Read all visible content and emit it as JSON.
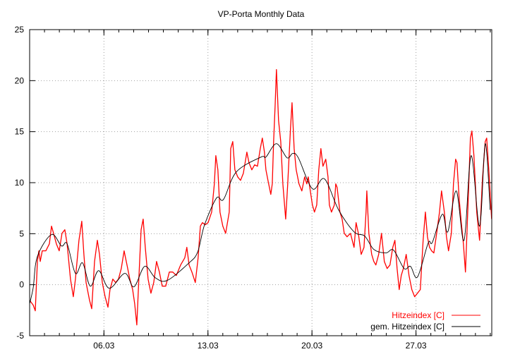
{
  "chart_data": {
    "type": "line",
    "title": "VP-Porta Monthly Data",
    "xlabel": "",
    "ylabel": "",
    "x_unit": "day of March",
    "xlim": [
      1,
      32.1
    ],
    "ylim": [
      -5,
      25
    ],
    "yticks": [
      -5,
      0,
      5,
      10,
      15,
      20,
      25
    ],
    "xticks": [
      {
        "value": 6,
        "label": "06.03"
      },
      {
        "value": 13,
        "label": "13.03"
      },
      {
        "value": 20,
        "label": "20.03"
      },
      {
        "value": 27,
        "label": "27.03"
      }
    ],
    "grid": true,
    "legend_position": "bottom-right",
    "series": [
      {
        "name": "Hitzeindex [C]",
        "color": "#ff0000",
        "x": [
          1.0,
          1.24,
          1.38,
          1.52,
          1.62,
          1.71,
          1.85,
          2.09,
          2.33,
          2.47,
          2.61,
          2.8,
          2.99,
          3.18,
          3.37,
          3.52,
          3.75,
          3.94,
          4.08,
          4.32,
          4.51,
          4.65,
          4.8,
          5.03,
          5.18,
          5.37,
          5.56,
          5.7,
          5.89,
          6.08,
          6.27,
          6.41,
          6.6,
          6.79,
          6.98,
          7.17,
          7.36,
          7.55,
          7.74,
          7.93,
          8.07,
          8.21,
          8.36,
          8.5,
          8.64,
          8.78,
          8.97,
          9.16,
          9.35,
          9.54,
          9.73,
          9.92,
          10.16,
          10.4,
          10.63,
          10.87,
          11.16,
          11.44,
          11.58,
          11.73,
          11.92,
          12.15,
          12.34,
          12.49,
          12.63,
          12.82,
          13.01,
          13.25,
          13.43,
          13.53,
          13.67,
          13.81,
          14.0,
          14.19,
          14.43,
          14.53,
          14.67,
          14.81,
          15.0,
          15.19,
          15.38,
          15.62,
          15.76,
          15.95,
          16.14,
          16.33,
          16.52,
          16.66,
          16.8,
          16.9,
          17.04,
          17.23,
          17.33,
          17.42,
          17.52,
          17.61,
          17.75,
          17.9,
          18.04,
          18.23,
          18.37,
          18.56,
          18.66,
          18.8,
          18.94,
          19.13,
          19.32,
          19.51,
          19.65,
          19.75,
          19.89,
          20.03,
          20.17,
          20.32,
          20.46,
          20.6,
          20.74,
          20.93,
          21.08,
          21.17,
          21.31,
          21.5,
          21.6,
          21.69,
          21.88,
          22.03,
          22.17,
          22.36,
          22.59,
          22.83,
          22.97,
          23.12,
          23.31,
          23.5,
          23.64,
          23.69,
          23.83,
          24.02,
          24.16,
          24.3,
          24.49,
          24.68,
          24.87,
          25.06,
          25.25,
          25.44,
          25.58,
          25.73,
          25.87,
          26.01,
          26.15,
          26.34,
          26.53,
          26.72,
          26.91,
          27.1,
          27.29,
          27.48,
          27.63,
          27.77,
          27.91,
          28.05,
          28.2,
          28.39,
          28.58,
          28.72,
          28.91,
          29.05,
          29.19,
          29.38,
          29.52,
          29.67,
          29.76,
          29.9,
          30.05,
          30.19,
          30.33,
          30.52,
          30.66,
          30.76,
          30.9,
          31.09,
          31.28,
          31.47,
          31.66,
          31.76,
          31.9,
          32.09
        ],
        "values": [
          -1.52,
          -2.0,
          -2.56,
          2.28,
          3.32,
          2.28,
          3.32,
          3.32,
          4.01,
          5.74,
          5.04,
          4.01,
          3.32,
          5.04,
          5.39,
          4.01,
          0.55,
          -1.18,
          0.55,
          4.35,
          6.22,
          2.97,
          0.21,
          -1.52,
          -2.35,
          2.28,
          4.35,
          2.97,
          0.21,
          -1.18,
          -2.21,
          -0.48,
          0.55,
          0.21,
          0.55,
          1.59,
          3.32,
          1.93,
          0.55,
          -0.48,
          -1.87,
          -3.94,
          0.9,
          5.39,
          6.43,
          3.66,
          0.55,
          -0.83,
          0.21,
          2.28,
          1.24,
          -0.14,
          -0.14,
          1.24,
          1.24,
          0.9,
          1.93,
          2.63,
          3.66,
          1.93,
          1.24,
          0.21,
          2.63,
          5.74,
          6.08,
          5.87,
          6.08,
          7.12,
          9.88,
          12.65,
          11.26,
          7.12,
          5.74,
          5.04,
          7.12,
          13.34,
          14.03,
          11.26,
          10.57,
          10.23,
          10.92,
          12.99,
          11.95,
          11.26,
          11.75,
          11.61,
          13.34,
          14.37,
          12.99,
          11.26,
          10.23,
          8.85,
          9.88,
          14.03,
          17.48,
          21.08,
          16.1,
          14.03,
          9.88,
          6.43,
          9.88,
          15.41,
          17.83,
          13.34,
          11.26,
          9.88,
          9.19,
          10.57,
          9.88,
          10.57,
          9.19,
          7.81,
          7.12,
          7.81,
          11.26,
          13.34,
          11.61,
          12.3,
          10.57,
          7.81,
          7.12,
          7.81,
          9.88,
          9.54,
          7.12,
          6.43,
          5.04,
          4.7,
          5.04,
          3.66,
          6.08,
          5.04,
          2.97,
          3.66,
          7.12,
          9.19,
          5.04,
          2.97,
          2.28,
          1.93,
          2.97,
          5.04,
          2.28,
          1.59,
          1.93,
          3.66,
          4.35,
          1.59,
          -0.48,
          0.9,
          1.59,
          2.97,
          0.9,
          -0.48,
          -1.18,
          -0.83,
          -0.48,
          4.35,
          7.12,
          4.7,
          3.66,
          3.32,
          3.11,
          5.04,
          7.12,
          9.19,
          7.12,
          4.7,
          3.32,
          5.04,
          9.88,
          12.3,
          11.95,
          8.5,
          6.08,
          4.01,
          1.24,
          8.5,
          14.37,
          15.07,
          12.65,
          7.12,
          4.35,
          10.23,
          14.03,
          14.37,
          11.26,
          6.43
        ]
      },
      {
        "name": "gem. Hitzeindex [C]",
        "color": "#000000",
        "x": [
          1.0,
          1.24,
          1.52,
          2.47,
          3.14,
          3.52,
          4.08,
          4.56,
          5.08,
          5.65,
          6.36,
          7.41,
          8.02,
          8.74,
          9.45,
          10.25,
          11.68,
          12.3,
          12.77,
          13.58,
          14.05,
          14.91,
          16.57,
          16.9,
          17.61,
          18.32,
          18.7,
          19.08,
          20.03,
          20.84,
          21.79,
          22.83,
          23.55,
          24.16,
          24.97,
          25.49,
          26.2,
          26.63,
          27.1,
          27.82,
          28.1,
          28.77,
          29.14,
          29.71,
          30.24,
          30.71,
          31.28,
          31.66,
          31.99
        ],
        "values": [
          -1.87,
          -0.28,
          2.76,
          4.91,
          3.8,
          4.01,
          1.11,
          2.14,
          -0.14,
          1.38,
          -0.35,
          1.11,
          -0.21,
          1.8,
          0.69,
          0.41,
          2.07,
          3.18,
          5.87,
          8.5,
          8.36,
          11.06,
          12.51,
          12.51,
          13.82,
          12.44,
          12.86,
          12.44,
          9.4,
          10.37,
          7.33,
          5.18,
          4.77,
          3.46,
          3.11,
          3.39,
          1.59,
          1.8,
          0.76,
          4.08,
          4.15,
          6.91,
          5.18,
          9.19,
          4.35,
          12.65,
          5.74,
          13.82,
          7.33
        ]
      }
    ]
  }
}
